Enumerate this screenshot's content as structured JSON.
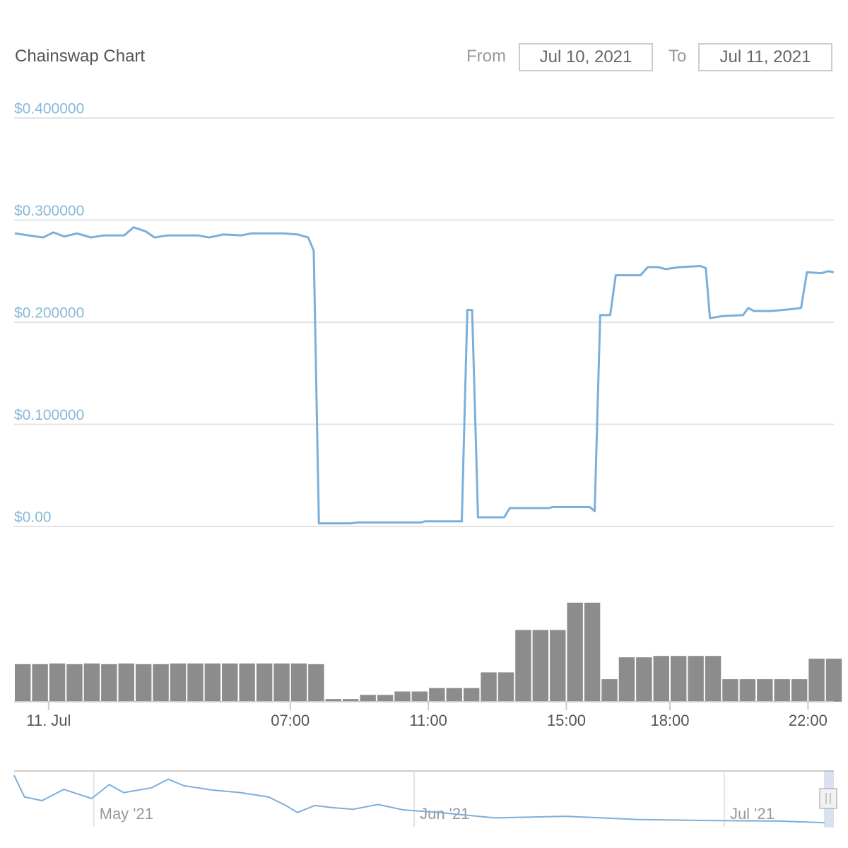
{
  "header": {
    "title": "Chainswap Chart",
    "from_label": "From",
    "from": "Jul 10, 2021",
    "to_label": "To",
    "to": "Jul 11, 2021"
  },
  "chart_data": [
    {
      "type": "line",
      "color": "#7aafdc",
      "grid": true,
      "xlim": [
        -1,
        22.75
      ],
      "ylim": [
        0,
        0.4
      ],
      "yticks": [
        {
          "value": 0,
          "label": "$0.00"
        },
        {
          "value": 0.1,
          "label": "$0.100000"
        },
        {
          "value": 0.2,
          "label": "$0.200000"
        },
        {
          "value": 0.3,
          "label": "$0.300000"
        },
        {
          "value": 0.4,
          "label": "$0.400000"
        }
      ],
      "x": [
        -0.98,
        -0.16,
        0.14,
        0.45,
        0.82,
        1.23,
        1.58,
        2.19,
        2.46,
        2.81,
        3.07,
        3.42,
        4.34,
        4.65,
        5.06,
        5.57,
        5.88,
        6.8,
        7.21,
        7.52,
        7.68,
        7.83,
        8.75,
        8.95,
        10.8,
        10.9,
        11.97,
        12.13,
        12.27,
        12.44,
        13.2,
        13.36,
        14.49,
        14.59,
        15.68,
        15.82,
        15.98,
        16.27,
        16.43,
        17.15,
        17.36,
        17.66,
        17.87,
        18.28,
        18.89,
        19.04,
        19.16,
        19.51,
        20.12,
        20.27,
        20.43,
        20.94,
        21.56,
        21.8,
        21.97,
        22.38,
        22.59,
        22.75
      ],
      "values": [
        0.287,
        0.283,
        0.288,
        0.284,
        0.287,
        0.283,
        0.285,
        0.285,
        0.293,
        0.289,
        0.283,
        0.285,
        0.285,
        0.283,
        0.286,
        0.285,
        0.287,
        0.287,
        0.286,
        0.283,
        0.27,
        0.003,
        0.003,
        0.004,
        0.004,
        0.005,
        0.005,
        0.212,
        0.212,
        0.009,
        0.009,
        0.018,
        0.018,
        0.019,
        0.019,
        0.015,
        0.207,
        0.207,
        0.246,
        0.246,
        0.254,
        0.254,
        0.252,
        0.254,
        0.255,
        0.253,
        0.204,
        0.206,
        0.207,
        0.214,
        0.211,
        0.211,
        0.213,
        0.214,
        0.249,
        0.248,
        0.25,
        0.249
      ]
    },
    {
      "type": "bar",
      "color": "#8c8c8c",
      "xlim": [
        -1,
        22.75
      ],
      "ylim": [
        0,
        150
      ],
      "xticks": [
        {
          "value": 0,
          "label": "11. Jul"
        },
        {
          "value": 7,
          "label": "07:00"
        },
        {
          "value": 11,
          "label": "11:00"
        },
        {
          "value": 15,
          "label": "15:00"
        },
        {
          "value": 18,
          "label": "18:00"
        },
        {
          "value": 22,
          "label": "22:00"
        }
      ],
      "x": [
        -1,
        -0.5,
        0,
        0.5,
        1,
        1.5,
        2,
        2.5,
        3,
        3.5,
        4,
        4.5,
        5,
        5.5,
        6,
        6.5,
        7,
        7.5,
        8,
        8.5,
        9,
        9.5,
        10,
        10.5,
        11,
        11.5,
        12,
        12.5,
        13,
        13.5,
        14,
        14.5,
        15,
        15.5,
        16,
        16.5,
        17,
        17.5,
        18,
        18.5,
        19,
        19.5,
        20,
        20.5,
        21,
        21.5,
        22,
        22.5
      ],
      "values": [
        55,
        55,
        56,
        55,
        56,
        55,
        56,
        55,
        55,
        56,
        56,
        56,
        56,
        56,
        56,
        56,
        56,
        55,
        4,
        4,
        10,
        10,
        15,
        15,
        20,
        20,
        20,
        43,
        43,
        105,
        105,
        105,
        145,
        145,
        33,
        65,
        65,
        67,
        67,
        67,
        67,
        33,
        33,
        33,
        33,
        33,
        63,
        63
      ]
    },
    {
      "type": "line",
      "color": "#7aafdc",
      "xlim": [
        -7.7,
        71.6
      ],
      "ylim": [
        0,
        1
      ],
      "xticks": [
        {
          "value": 0,
          "label": "May '21"
        },
        {
          "value": 31,
          "label": "Jun '21"
        },
        {
          "value": 61,
          "label": "Jul '21"
        }
      ],
      "x": [
        -7.7,
        -6.7,
        -5,
        -2.9,
        -0.2,
        1.5,
        2.9,
        5.6,
        7.2,
        8.7,
        11.4,
        14.2,
        16.9,
        18.6,
        19.7,
        21.4,
        23.1,
        25.1,
        27.5,
        29.9,
        33.4,
        38.8,
        45.7,
        52.5,
        59.4,
        66.2,
        70.7
      ],
      "values": [
        0.93,
        0.53,
        0.46,
        0.67,
        0.5,
        0.76,
        0.61,
        0.7,
        0.86,
        0.74,
        0.66,
        0.61,
        0.53,
        0.37,
        0.24,
        0.37,
        0.33,
        0.3,
        0.39,
        0.29,
        0.24,
        0.14,
        0.17,
        0.11,
        0.09,
        0.08,
        0.05
      ]
    }
  ]
}
